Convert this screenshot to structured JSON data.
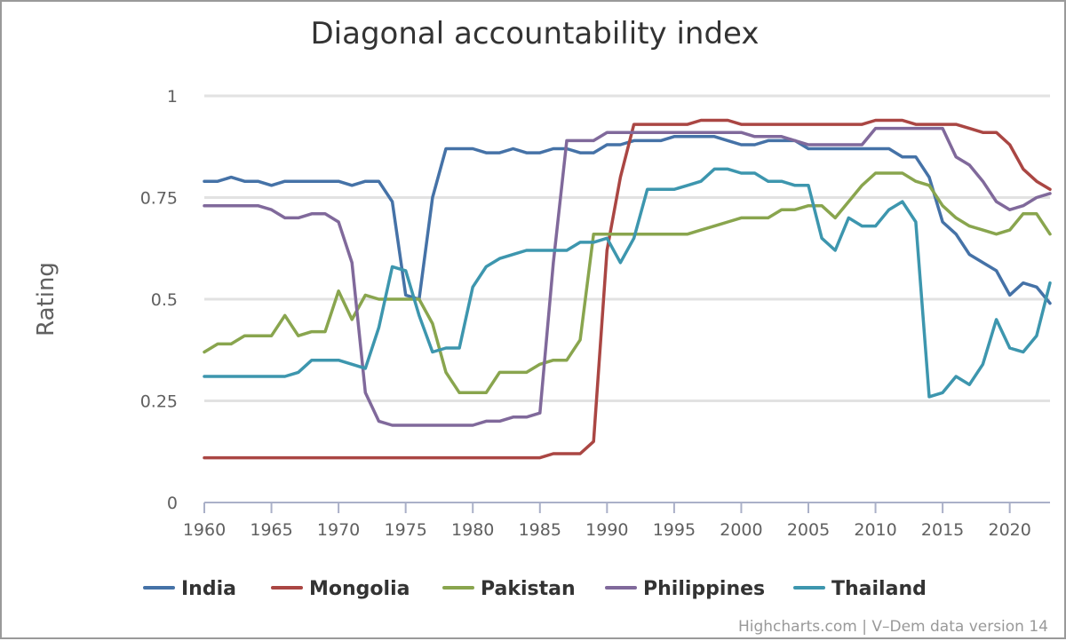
{
  "chart_data": {
    "type": "line",
    "title": "Diagonal accountability index",
    "ylabel": "Rating",
    "xlabel": "",
    "xlim": [
      1960,
      2023
    ],
    "ylim": [
      0,
      1
    ],
    "x_ticks": [
      1960,
      1965,
      1970,
      1975,
      1980,
      1985,
      1990,
      1995,
      2000,
      2005,
      2010,
      2015,
      2020
    ],
    "y_ticks": [
      0,
      0.25,
      0.5,
      0.75,
      1
    ],
    "y_tick_labels": [
      "0",
      "0.25",
      "0.5",
      "0.75",
      "1"
    ],
    "grid": true,
    "legend_position": "bottom",
    "x": [
      1960,
      1961,
      1962,
      1963,
      1964,
      1965,
      1966,
      1967,
      1968,
      1969,
      1970,
      1971,
      1972,
      1973,
      1974,
      1975,
      1976,
      1977,
      1978,
      1979,
      1980,
      1981,
      1982,
      1983,
      1984,
      1985,
      1986,
      1987,
      1988,
      1989,
      1990,
      1991,
      1992,
      1993,
      1994,
      1995,
      1996,
      1997,
      1998,
      1999,
      2000,
      2001,
      2002,
      2003,
      2004,
      2005,
      2006,
      2007,
      2008,
      2009,
      2010,
      2011,
      2012,
      2013,
      2014,
      2015,
      2016,
      2017,
      2018,
      2019,
      2020,
      2021,
      2022,
      2023
    ],
    "series": [
      {
        "name": "India",
        "color": "#4572a7",
        "values": [
          0.79,
          0.79,
          0.8,
          0.79,
          0.79,
          0.78,
          0.79,
          0.79,
          0.79,
          0.79,
          0.79,
          0.78,
          0.79,
          0.79,
          0.74,
          0.51,
          0.5,
          0.75,
          0.87,
          0.87,
          0.87,
          0.86,
          0.86,
          0.87,
          0.86,
          0.86,
          0.87,
          0.87,
          0.86,
          0.86,
          0.88,
          0.88,
          0.89,
          0.89,
          0.89,
          0.9,
          0.9,
          0.9,
          0.9,
          0.89,
          0.88,
          0.88,
          0.89,
          0.89,
          0.89,
          0.87,
          0.87,
          0.87,
          0.87,
          0.87,
          0.87,
          0.87,
          0.85,
          0.85,
          0.8,
          0.69,
          0.66,
          0.61,
          0.59,
          0.57,
          0.51,
          0.54,
          0.53,
          0.49
        ]
      },
      {
        "name": "Mongolia",
        "color": "#aa4643",
        "values": [
          0.11,
          0.11,
          0.11,
          0.11,
          0.11,
          0.11,
          0.11,
          0.11,
          0.11,
          0.11,
          0.11,
          0.11,
          0.11,
          0.11,
          0.11,
          0.11,
          0.11,
          0.11,
          0.11,
          0.11,
          0.11,
          0.11,
          0.11,
          0.11,
          0.11,
          0.11,
          0.12,
          0.12,
          0.12,
          0.15,
          0.62,
          0.8,
          0.93,
          0.93,
          0.93,
          0.93,
          0.93,
          0.94,
          0.94,
          0.94,
          0.93,
          0.93,
          0.93,
          0.93,
          0.93,
          0.93,
          0.93,
          0.93,
          0.93,
          0.93,
          0.94,
          0.94,
          0.94,
          0.93,
          0.93,
          0.93,
          0.93,
          0.92,
          0.91,
          0.91,
          0.88,
          0.82,
          0.79,
          0.77
        ]
      },
      {
        "name": "Pakistan",
        "color": "#89a54e",
        "values": [
          0.37,
          0.39,
          0.39,
          0.41,
          0.41,
          0.41,
          0.46,
          0.41,
          0.42,
          0.42,
          0.52,
          0.45,
          0.51,
          0.5,
          0.5,
          0.5,
          0.5,
          0.44,
          0.32,
          0.27,
          0.27,
          0.27,
          0.32,
          0.32,
          0.32,
          0.34,
          0.35,
          0.35,
          0.4,
          0.66,
          0.66,
          0.66,
          0.66,
          0.66,
          0.66,
          0.66,
          0.66,
          0.67,
          0.68,
          0.69,
          0.7,
          0.7,
          0.7,
          0.72,
          0.72,
          0.73,
          0.73,
          0.7,
          0.74,
          0.78,
          0.81,
          0.81,
          0.81,
          0.79,
          0.78,
          0.73,
          0.7,
          0.68,
          0.67,
          0.66,
          0.67,
          0.71,
          0.71,
          0.66
        ]
      },
      {
        "name": "Philippines",
        "color": "#80699b",
        "values": [
          0.73,
          0.73,
          0.73,
          0.73,
          0.73,
          0.72,
          0.7,
          0.7,
          0.71,
          0.71,
          0.69,
          0.59,
          0.27,
          0.2,
          0.19,
          0.19,
          0.19,
          0.19,
          0.19,
          0.19,
          0.19,
          0.2,
          0.2,
          0.21,
          0.21,
          0.22,
          0.59,
          0.89,
          0.89,
          0.89,
          0.91,
          0.91,
          0.91,
          0.91,
          0.91,
          0.91,
          0.91,
          0.91,
          0.91,
          0.91,
          0.91,
          0.9,
          0.9,
          0.9,
          0.89,
          0.88,
          0.88,
          0.88,
          0.88,
          0.88,
          0.92,
          0.92,
          0.92,
          0.92,
          0.92,
          0.92,
          0.85,
          0.83,
          0.79,
          0.74,
          0.72,
          0.73,
          0.75,
          0.76
        ]
      },
      {
        "name": "Thailand",
        "color": "#3d96ae",
        "values": [
          0.31,
          0.31,
          0.31,
          0.31,
          0.31,
          0.31,
          0.31,
          0.32,
          0.35,
          0.35,
          0.35,
          0.34,
          0.33,
          0.43,
          0.58,
          0.57,
          0.46,
          0.37,
          0.38,
          0.38,
          0.53,
          0.58,
          0.6,
          0.61,
          0.62,
          0.62,
          0.62,
          0.62,
          0.64,
          0.64,
          0.65,
          0.59,
          0.65,
          0.77,
          0.77,
          0.77,
          0.78,
          0.79,
          0.82,
          0.82,
          0.81,
          0.81,
          0.79,
          0.79,
          0.78,
          0.78,
          0.65,
          0.62,
          0.7,
          0.68,
          0.68,
          0.72,
          0.74,
          0.69,
          0.26,
          0.27,
          0.31,
          0.29,
          0.34,
          0.45,
          0.38,
          0.37,
          0.41,
          0.54
        ]
      }
    ]
  },
  "credits": "Highcharts.com | V–Dem data version 14"
}
